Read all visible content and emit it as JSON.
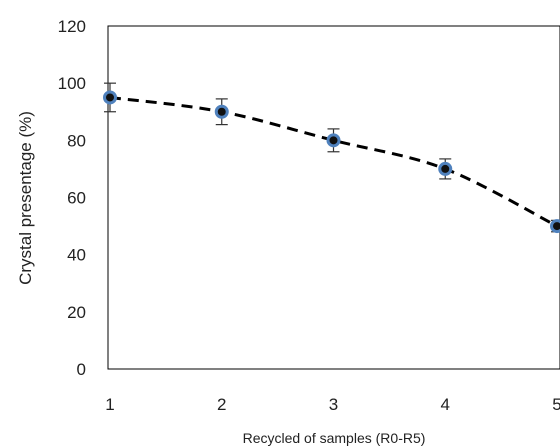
{
  "chart_data": {
    "type": "scatter",
    "title": "",
    "xlabel": "Recycled of samples (R0-R5)",
    "ylabel": "Crystal presentage (%)",
    "xlim": [
      1,
      5
    ],
    "ylim": [
      0,
      120
    ],
    "x_ticks": [
      "1",
      "2",
      "3",
      "4",
      "5"
    ],
    "y_ticks": [
      "0",
      "20",
      "40",
      "60",
      "80",
      "100",
      "120"
    ],
    "grid": false,
    "legend": "none",
    "series": [
      {
        "x": [
          1,
          2,
          3,
          4,
          5
        ],
        "y": [
          95,
          90,
          80,
          70,
          50
        ],
        "error": [
          5,
          4.5,
          4,
          3.5,
          2
        ],
        "marker_color": "#111111",
        "marker_edge_color": "#4f81bd",
        "trendline": "dashed polynomial"
      }
    ]
  }
}
